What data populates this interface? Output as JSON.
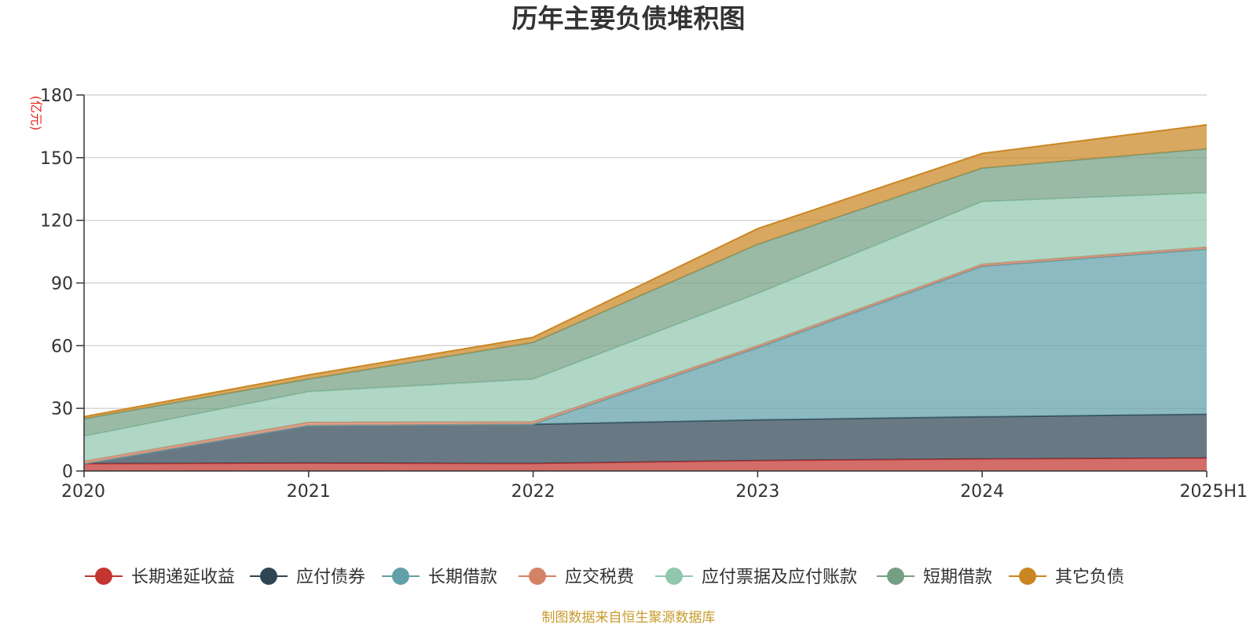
{
  "chart_data": {
    "type": "area",
    "stacked": true,
    "title": "历年主要负债堆积图",
    "unit_label": "(亿元)",
    "source": "制图数据来自恒生聚源数据库",
    "categories": [
      "2020",
      "2021",
      "2022",
      "2023",
      "2024",
      "2025H1"
    ],
    "ylim": [
      0,
      180
    ],
    "yticks": [
      0,
      30,
      60,
      90,
      120,
      150,
      180
    ],
    "grid": true,
    "legend_position": "bottom",
    "series": [
      {
        "name": "长期递延收益",
        "color": "#c23531",
        "values": [
          3.5,
          3.8,
          3.6,
          5.0,
          5.8,
          6.2
        ]
      },
      {
        "name": "应付债券",
        "color": "#2f4554",
        "values": [
          0,
          18.0,
          18.8,
          19.5,
          20.2,
          21.0
        ]
      },
      {
        "name": "长期借款",
        "color": "#61a0a8",
        "values": [
          0,
          0,
          0,
          34.5,
          72.0,
          79.0
        ]
      },
      {
        "name": "应交税费",
        "color": "#d48265",
        "values": [
          1.2,
          1.5,
          1.2,
          1.0,
          1.0,
          1.0
        ]
      },
      {
        "name": "应付票据及应付账款",
        "color": "#91c7ae",
        "values": [
          12.0,
          14.7,
          20.4,
          25.0,
          30.0,
          26.0
        ]
      },
      {
        "name": "短期借款",
        "color": "#749f83",
        "values": [
          8.3,
          6.0,
          17.5,
          23.5,
          16.0,
          21.0
        ]
      },
      {
        "name": "其它负债",
        "color": "#ca8622",
        "values": [
          1.0,
          2.0,
          2.5,
          7.5,
          7.0,
          11.5
        ]
      }
    ]
  }
}
